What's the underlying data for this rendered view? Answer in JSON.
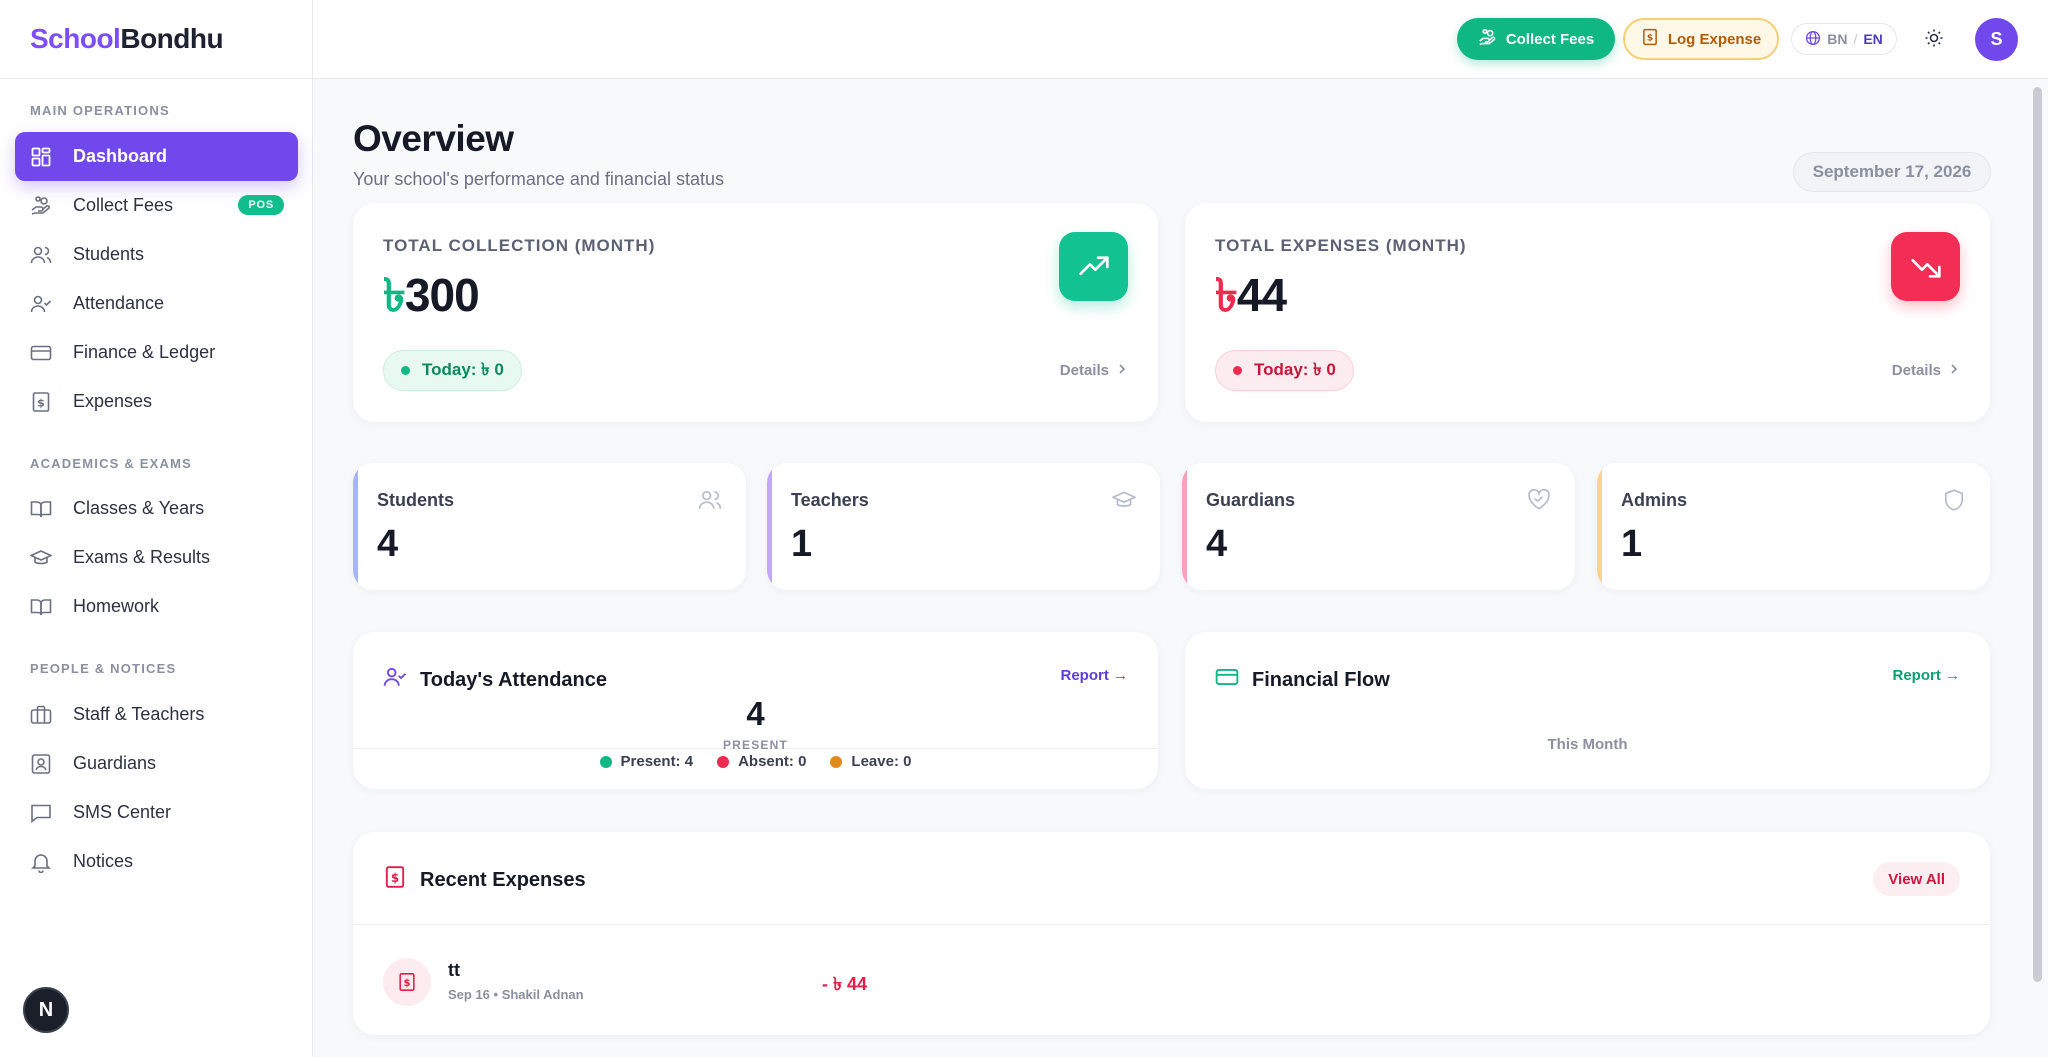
{
  "brand": {
    "part1": "School",
    "part2": "Bondhu"
  },
  "sidebar": {
    "sections": [
      {
        "title": "MAIN OPERATIONS"
      },
      {
        "title": "ACADEMICS & EXAMS"
      },
      {
        "title": "PEOPLE & NOTICES"
      }
    ],
    "items": [
      {
        "label": "Dashboard",
        "icon": "grid-icon"
      },
      {
        "label": "Collect Fees",
        "icon": "hand-coins-icon",
        "badge": "POS"
      },
      {
        "label": "Students",
        "icon": "users-icon"
      },
      {
        "label": "Attendance",
        "icon": "user-check-icon"
      },
      {
        "label": "Finance & Ledger",
        "icon": "credit-card-icon"
      },
      {
        "label": "Expenses",
        "icon": "receipt-icon"
      },
      {
        "label": "Classes & Years",
        "icon": "book-open-icon"
      },
      {
        "label": "Exams & Results",
        "icon": "graduation-cap-icon"
      },
      {
        "label": "Homework",
        "icon": "book-icon"
      },
      {
        "label": "Staff & Teachers",
        "icon": "briefcase-icon"
      },
      {
        "label": "Guardians",
        "icon": "contact-icon"
      },
      {
        "label": "SMS Center",
        "icon": "message-icon"
      },
      {
        "label": "Notices",
        "icon": "bell-icon"
      }
    ],
    "dev_badge": "N"
  },
  "topbar": {
    "collect_fees": "Collect Fees",
    "log_expense": "Log Expense",
    "lang_bn": "BN",
    "lang_sep": "/",
    "lang_en": "EN",
    "avatar": "S"
  },
  "overview": {
    "title": "Overview",
    "subtitle": "Your school's performance and financial status",
    "date": "September 17, 2026"
  },
  "collection": {
    "label": "TOTAL COLLECTION (MONTH)",
    "currency": "৳",
    "value": "300",
    "today": "Today: ৳ 0",
    "details": "Details"
  },
  "expenses": {
    "label": "TOTAL EXPENSES (MONTH)",
    "currency": "৳",
    "value": "44",
    "today": "Today: ৳ 0",
    "details": "Details"
  },
  "stats": [
    {
      "label": "Students",
      "value": "4",
      "icon": "users-icon",
      "color": "#a5b4fc"
    },
    {
      "label": "Teachers",
      "value": "1",
      "icon": "graduation-cap-icon",
      "color": "#c4a5fb"
    },
    {
      "label": "Guardians",
      "value": "4",
      "icon": "heart-handshake-icon",
      "color": "#f4a3bc"
    },
    {
      "label": "Admins",
      "value": "1",
      "icon": "shield-icon",
      "color": "#f8d48a"
    }
  ],
  "attendance": {
    "title": "Today's Attendance",
    "report": "Report →",
    "count": "4",
    "count_label": "PRESENT",
    "present": "Present: 4",
    "absent": "Absent: 0",
    "leave": "Leave: 0"
  },
  "financial_flow": {
    "title": "Financial Flow",
    "report": "Report →",
    "period": "This Month"
  },
  "recent_expenses": {
    "title": "Recent Expenses",
    "view_all": "View All",
    "items": [
      {
        "title": "tt",
        "meta": "Sep 16 • Shakil Adnan",
        "amount": "- ৳ 44"
      }
    ]
  },
  "colors": {
    "primary": "#7048ec",
    "success": "#0fb882",
    "danger": "#ee2a4f",
    "warning": "#f5cf74"
  }
}
